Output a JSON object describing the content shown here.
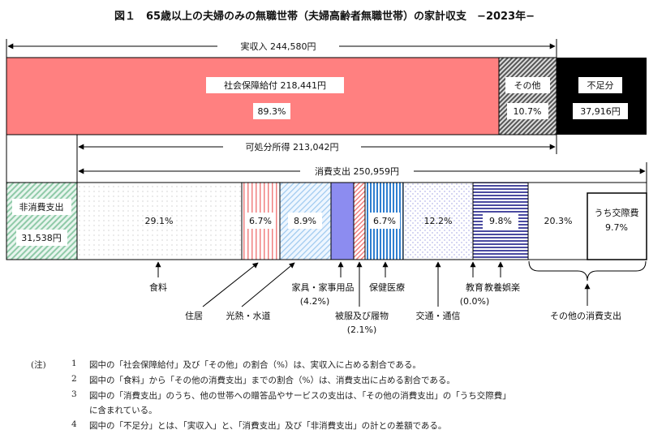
{
  "title": "図１　65歳以上の夫婦のみの無職世帯（夫婦高齢者無職世帯）の家計収支　−2023年−",
  "chart_data": {
    "type": "stacked-bar",
    "income": {
      "total_label": "実収入",
      "total_value": "244,580円",
      "segments": [
        {
          "label": "社会保障給付",
          "value": "218,441円",
          "percent": "89.3%",
          "pct": 89.3,
          "color": "#ff8080"
        },
        {
          "label": "その他",
          "percent": "10.7%",
          "pct": 10.7,
          "color": "#777777"
        }
      ],
      "shortfall": {
        "label": "不足分",
        "value": "37,916円",
        "color": "#000000"
      },
      "disposable_label": "可処分所得",
      "disposable_value": "213,042円"
    },
    "expenditure": {
      "total_label": "消費支出",
      "total_value": "250,959円",
      "non_consumption": {
        "label": "非消費支出",
        "value": "31,538円",
        "color": "#9fd4b8"
      },
      "segments": [
        {
          "label": "食料",
          "percent": "29.1%",
          "pct": 29.1
        },
        {
          "label": "住居",
          "percent": "6.7%",
          "pct": 6.7
        },
        {
          "label": "光熱・水道",
          "percent": "8.9%",
          "pct": 8.9
        },
        {
          "label": "家具・家事用品",
          "percent": "(4.2%)",
          "pct": 4.2
        },
        {
          "label": "被服及び履物",
          "percent": "(2.1%)",
          "pct": 2.1
        },
        {
          "label": "保健医療",
          "percent": "6.7%",
          "pct": 6.7
        },
        {
          "label": "交通・通信",
          "percent": "12.2%",
          "pct": 12.2
        },
        {
          "label": "教育",
          "percent": "(0.0%)",
          "pct": 0.0
        },
        {
          "label": "教養娯楽",
          "percent": "9.8%",
          "pct": 9.8
        },
        {
          "label": "その他の消費支出",
          "percent": "20.3%",
          "pct": 20.3
        }
      ],
      "sub_segment": {
        "label": "うち交際費",
        "percent": "9.7%",
        "pct": 9.7
      }
    }
  },
  "notes": {
    "prefix": "(注)",
    "items": [
      {
        "num": "1",
        "text": "図中の「社会保障給付」及び「その他」の割合（%）は、実収入に占める割合である。"
      },
      {
        "num": "2",
        "text": "図中の「食料」から「その他の消費支出」までの割合（%）は、消費支出に占める割合である。"
      },
      {
        "num": "3",
        "text": "図中の「消費支出」のうち、他の世帯への贈答品やサービスの支出は、「その他の消費支出」の「うち交際費」"
      },
      {
        "num": "",
        "text": "に含まれている。"
      },
      {
        "num": "4",
        "text": "図中の「不足分」とは、「実収入」と、「消費支出」及び「非消費支出」の計との差額である。"
      }
    ]
  }
}
